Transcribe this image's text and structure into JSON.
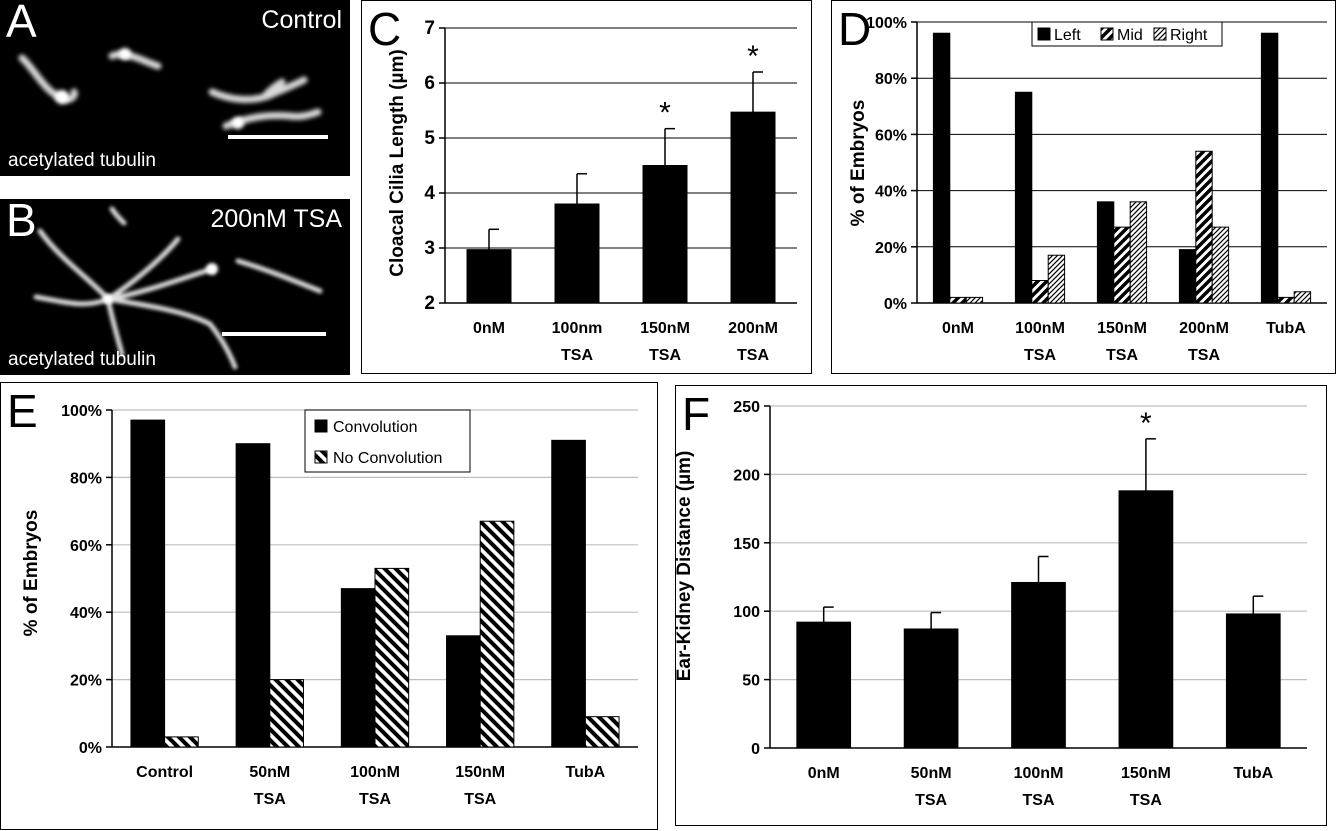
{
  "colors": {
    "bar": "#000000",
    "grid": "#bdbdbd",
    "hatch_bg": "#ffffff"
  },
  "panels": {
    "A": {
      "letter": "A",
      "condition": "Control",
      "stain": "acetylated tubulin"
    },
    "B": {
      "letter": "B",
      "condition": "200nM TSA",
      "stain": "acetylated tubulin"
    }
  },
  "chart_data": [
    {
      "panel": "C",
      "type": "bar",
      "categories": [
        [
          "0nM"
        ],
        [
          "100nm",
          "TSA"
        ],
        [
          "150nM",
          "TSA"
        ],
        [
          "200nM",
          "TSA"
        ]
      ],
      "series": [
        {
          "values": [
            2.97,
            3.8,
            4.5,
            5.47
          ],
          "errors": [
            0.37,
            0.55,
            0.67,
            0.73
          ],
          "style": "solid"
        }
      ],
      "significance": [
        "",
        "",
        "*",
        "*"
      ],
      "ylabel": "Cloacal Cilia Length (µm)",
      "ylim": [
        2,
        7
      ],
      "yticks": [
        2,
        3,
        4,
        5,
        6,
        7
      ],
      "ytick_labels": [
        "2",
        "3",
        "4",
        "5",
        "6",
        "7"
      ],
      "grid": true
    },
    {
      "panel": "D",
      "type": "bar",
      "categories": [
        [
          "0nM"
        ],
        [
          "100nM",
          "TSA"
        ],
        [
          "150nM",
          "TSA"
        ],
        [
          "200nM",
          "TSA"
        ],
        [
          "TubA"
        ]
      ],
      "series": [
        {
          "name": "Left",
          "values": [
            96,
            75,
            36,
            19,
            96
          ],
          "style": "solid"
        },
        {
          "name": "Mid",
          "values": [
            2,
            8,
            27,
            54,
            2
          ],
          "style": "hatch-wide"
        },
        {
          "name": "Right",
          "values": [
            2,
            17,
            36,
            27,
            4
          ],
          "style": "hatch-fine"
        }
      ],
      "ylabel": "% of Embryos",
      "ylim": [
        0,
        100
      ],
      "yticks": [
        0,
        20,
        40,
        60,
        80,
        100
      ],
      "ytick_labels": [
        "0%",
        "20%",
        "40%",
        "60%",
        "80%",
        "100%"
      ],
      "legend": "top",
      "grid": true
    },
    {
      "panel": "E",
      "type": "bar",
      "categories": [
        [
          "Control"
        ],
        [
          "50nM",
          "TSA"
        ],
        [
          "100nM",
          "TSA"
        ],
        [
          "150nM",
          "TSA"
        ],
        [
          "TubA"
        ]
      ],
      "series": [
        {
          "name": "Convolution",
          "values": [
            97,
            90,
            47,
            33,
            91
          ],
          "style": "solid"
        },
        {
          "name": "No Convolution",
          "values": [
            3,
            20,
            53,
            67,
            9
          ],
          "style": "hatch-back"
        }
      ],
      "ylabel": "% of Embryos",
      "ylim": [
        0,
        100
      ],
      "yticks": [
        0,
        20,
        40,
        60,
        80,
        100
      ],
      "ytick_labels": [
        "0%",
        "20%",
        "40%",
        "60%",
        "80%",
        "100%"
      ],
      "legend": "top-center",
      "grid": true
    },
    {
      "panel": "F",
      "type": "bar",
      "categories": [
        [
          "0nM"
        ],
        [
          "50nM",
          "TSA"
        ],
        [
          "100nM",
          "TSA"
        ],
        [
          "150nM",
          "TSA"
        ],
        [
          "TubA"
        ]
      ],
      "series": [
        {
          "values": [
            92,
            87,
            121,
            188,
            98
          ],
          "errors": [
            11,
            12,
            19,
            38,
            13
          ],
          "style": "solid"
        }
      ],
      "significance": [
        "",
        "",
        "",
        "*",
        ""
      ],
      "ylabel": "Ear-Kidney Distance (µm)",
      "ylim": [
        0,
        250
      ],
      "yticks": [
        0,
        50,
        100,
        150,
        200,
        250
      ],
      "ytick_labels": [
        "0",
        "50",
        "100",
        "150",
        "200",
        "250"
      ],
      "grid": true
    }
  ]
}
